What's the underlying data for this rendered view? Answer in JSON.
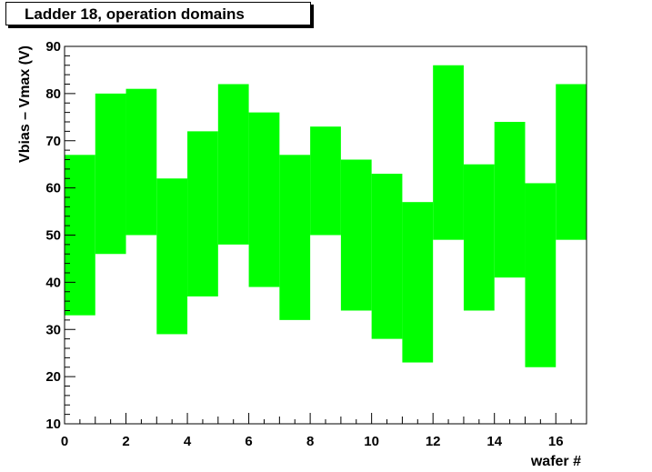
{
  "chart_data": {
    "type": "bar",
    "subtype": "floating-range",
    "title": "Ladder 18, operation domains",
    "xlabel": "wafer #",
    "ylabel": "Vbias – Vmax (V)",
    "xlim": [
      0,
      17
    ],
    "ylim": [
      10,
      90
    ],
    "x_ticks": [
      "0",
      "2",
      "4",
      "6",
      "8",
      "10",
      "12",
      "14",
      "16"
    ],
    "y_ticks": [
      "10",
      "20",
      "30",
      "40",
      "50",
      "60",
      "70",
      "80",
      "90"
    ],
    "x": [
      0,
      1,
      2,
      3,
      4,
      5,
      6,
      7,
      8,
      9,
      10,
      11,
      12,
      13,
      14,
      15,
      16
    ],
    "low": [
      33,
      46,
      50,
      29,
      37,
      48,
      39,
      32,
      50,
      34,
      28,
      23,
      49,
      34,
      41,
      22,
      49
    ],
    "high": [
      67,
      80,
      81,
      62,
      72,
      82,
      76,
      67,
      73,
      66,
      63,
      57,
      86,
      65,
      74,
      61,
      82
    ],
    "color": "#00ff00",
    "grid": false
  }
}
